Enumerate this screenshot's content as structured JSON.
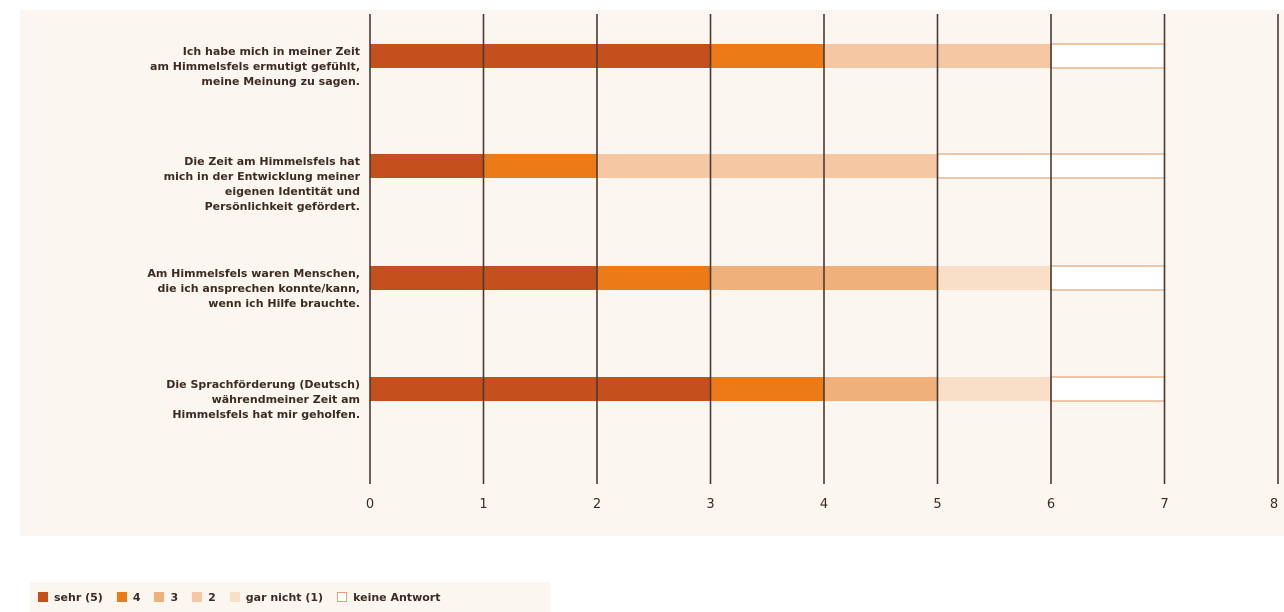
{
  "chart_data": {
    "type": "bar",
    "orientation": "horizontal",
    "stacked": true,
    "categories": [
      "Ich habe mich in meiner Zeit\nam Himmelsfels ermutigt gefühlt,\nmeine Meinung zu sagen.",
      "Die Zeit am Himmelsfels hat\nmich in der Entwicklung meiner\neigenen Identität und\nPersönlichkeit gefördert.",
      "Am Himmelsfels waren Menschen,\ndie ich ansprechen konnte/kann,\nwenn ich Hilfe brauchte.",
      "Die Sprachförderung (Deutsch)\nwährendmeiner Zeit am\nHimmelsfels hat mir geholfen."
    ],
    "series": [
      {
        "name": "sehr (5)",
        "color": "#c4501d",
        "values": [
          3,
          1,
          2,
          3
        ]
      },
      {
        "name": "4",
        "color": "#ec7a16",
        "values": [
          1,
          1,
          1,
          1
        ]
      },
      {
        "name": "3",
        "color": "#f0b07a",
        "values": [
          0,
          0,
          2,
          1
        ]
      },
      {
        "name": "2",
        "color": "#f5c8a3",
        "values": [
          2,
          3,
          0,
          0
        ]
      },
      {
        "name": "gar nicht (1)",
        "color": "#f9dfc8",
        "values": [
          0,
          0,
          1,
          1
        ]
      },
      {
        "name": "keine Antwort",
        "color": "#ffffff",
        "values": [
          1,
          2,
          1,
          1
        ]
      }
    ],
    "xlim": [
      0,
      8
    ],
    "xticks": [
      "0",
      "1",
      "2",
      "3",
      "4",
      "5",
      "6",
      "7",
      "8"
    ],
    "title": "",
    "xlabel": "",
    "ylabel": "",
    "legend_position": "bottom-left",
    "grid": "vertical"
  }
}
